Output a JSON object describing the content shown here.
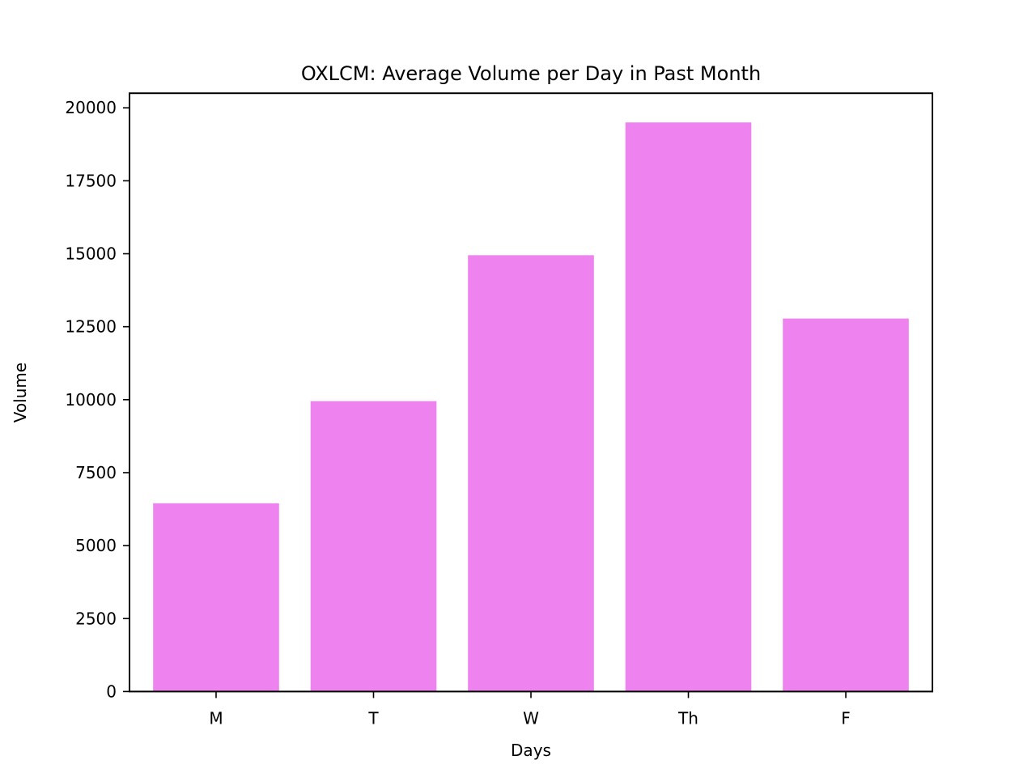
{
  "chart_data": {
    "type": "bar",
    "title": "OXLCM: Average Volume per Day in Past Month",
    "xlabel": "Days",
    "ylabel": "Volume",
    "categories": [
      "M",
      "T",
      "W",
      "Th",
      "F"
    ],
    "values": [
      6450,
      9950,
      14950,
      19500,
      12780
    ],
    "ylim": [
      0,
      20500
    ],
    "yticks": [
      0,
      2500,
      5000,
      7500,
      10000,
      12500,
      15000,
      17500,
      20000
    ],
    "grid": false,
    "bar_color": "#ee82ee"
  }
}
